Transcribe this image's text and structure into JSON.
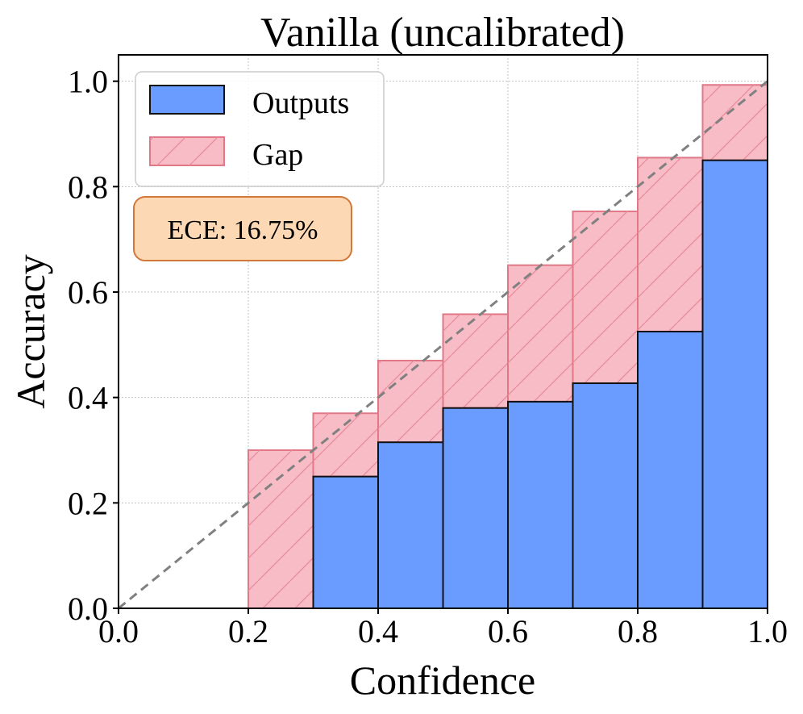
{
  "chart_data": {
    "type": "bar",
    "title": "Vanilla (uncalibrated)",
    "xlabel": "Confidence",
    "ylabel": "Accuracy",
    "xlim": [
      0.0,
      1.0
    ],
    "ylim": [
      0.0,
      1.05
    ],
    "xticks": [
      "0.0",
      "0.2",
      "0.4",
      "0.6",
      "0.8",
      "1.0"
    ],
    "yticks": [
      "0.0",
      "0.2",
      "0.4",
      "0.6",
      "0.8",
      "1.0"
    ],
    "grid": true,
    "bin_edges": [
      0.0,
      0.1,
      0.2,
      0.3,
      0.4,
      0.5,
      0.6,
      0.7,
      0.8,
      0.9,
      1.0
    ],
    "series": [
      {
        "name": "Outputs",
        "values": [
          0.0,
          0.0,
          0.0,
          0.25,
          0.315,
          0.38,
          0.392,
          0.427,
          0.525,
          0.85
        ]
      },
      {
        "name": "Gap",
        "bottoms": [
          0.0,
          0.0,
          0.0,
          0.25,
          0.315,
          0.38,
          0.392,
          0.427,
          0.525,
          0.85
        ],
        "tops": [
          0.0,
          0.0,
          0.3,
          0.37,
          0.47,
          0.558,
          0.651,
          0.753,
          0.855,
          0.993
        ]
      }
    ],
    "reference_line": "y = x (perfect calibration)",
    "legend": {
      "position": "upper-left",
      "entries": [
        "Outputs",
        "Gap"
      ]
    },
    "annotation": {
      "text": "ECE: 16.75%"
    },
    "colors": {
      "outputs_fill": "#6a9bff",
      "outputs_edge": "#111111",
      "gap_fill": "#f8bcc6",
      "gap_edge": "#e07887",
      "gap_hatch": "#e98a99",
      "diagonal": "#808080",
      "ece_fill": "#fdd8b5",
      "ece_edge": "#d2783a",
      "grid": "#c0c0c0"
    }
  }
}
